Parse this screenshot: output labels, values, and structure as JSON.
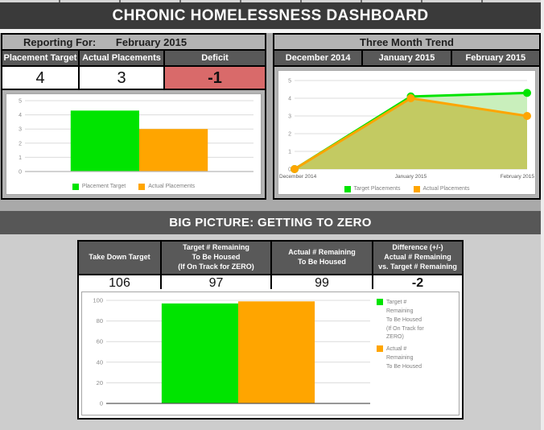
{
  "title_bar": {
    "title": "CHRONIC HOMELESSNESS DASHBOARD"
  },
  "monthly": {
    "reporting_for_label": "Reporting For:",
    "reporting_month": "February 2015",
    "table": {
      "headers": [
        "Placement Target",
        "Actual Placements",
        "Deficit"
      ],
      "values": [
        "4",
        "3",
        "-1"
      ]
    }
  },
  "trend": {
    "title": "Three Month Trend",
    "months": [
      "December 2014",
      "January 2015",
      "February 2015"
    ]
  },
  "big_picture": {
    "title": "BIG PICTURE: GETTING TO ZERO",
    "table": {
      "headers": [
        "Take Down Target",
        "Target # Remaining\nTo Be Housed\n(If On Track for ZERO)",
        "Actual # Remaining\nTo Be Housed",
        "Difference (+/-)\nActual # Remaining\nvs. Target # Remaining"
      ],
      "values": [
        "106",
        "97",
        "99",
        "-2"
      ]
    }
  },
  "colors": {
    "accent_green": "#00e400",
    "accent_orange": "#ffa500",
    "alert_red": "#d96a6a",
    "header_dark": "#595959",
    "titlebar_dark": "#3a3a3a",
    "area_light_green": "#c9efbc",
    "area_olive": "#c3ca62"
  },
  "chart_data": [
    {
      "id": "monthly_bars",
      "type": "bar",
      "categories": [
        "Placement Target",
        "Actual Placements"
      ],
      "values": [
        4.3,
        3
      ],
      "colors": [
        "#00e400",
        "#ffa500"
      ],
      "legend": [
        {
          "label": "Placement Target",
          "color": "#00e400"
        },
        {
          "label": "Actual Placements",
          "color": "#ffa500"
        }
      ],
      "title": "",
      "xlabel": "",
      "ylabel": "",
      "ylim": [
        0,
        5
      ],
      "yticks": [
        0,
        1,
        2,
        3,
        4,
        5
      ],
      "grid": true,
      "bar_frac": 0.3,
      "legend_position": "bottom"
    },
    {
      "id": "three_month_trend",
      "type": "area",
      "x": [
        "December 2014",
        "January 2015",
        "February 2015"
      ],
      "series": [
        {
          "name": "Target Placements",
          "values": [
            0,
            4.1,
            4.3
          ],
          "color": "#00e400"
        },
        {
          "name": "Actual Placements",
          "values": [
            0,
            4,
            3
          ],
          "color": "#ffa500"
        }
      ],
      "fills": [
        "#c9efbc",
        "#c3ca62"
      ],
      "legend": [
        {
          "label": "Target Placements",
          "color": "#00e400"
        },
        {
          "label": "Actual Placements",
          "color": "#ffa500"
        }
      ],
      "title": "",
      "xlabel": "",
      "ylabel": "",
      "ylim": [
        0,
        5
      ],
      "yticks": [
        0,
        1,
        2,
        3,
        4,
        5
      ],
      "grid": true,
      "legend_position": "bottom"
    },
    {
      "id": "zero_bars",
      "type": "bar",
      "categories": [
        "Target # Remaining To Be Housed (If On Track for ZERO)",
        "Actual # Remaining To Be Housed"
      ],
      "values": [
        97,
        99
      ],
      "colors": [
        "#00e400",
        "#ffa500"
      ],
      "legend": [
        {
          "label": "Target #\nRemaining\nTo Be Housed\n(If On Track for\nZERO)",
          "color": "#00e400"
        },
        {
          "label": "Actual #\nRemaining\nTo Be Housed",
          "color": "#ffa500"
        }
      ],
      "title": "",
      "xlabel": "",
      "ylabel": "",
      "ylim": [
        0,
        100
      ],
      "yticks": [
        0,
        20,
        40,
        60,
        80,
        100
      ],
      "grid": true,
      "bar_frac": 0.29,
      "legend_position": "right"
    }
  ]
}
